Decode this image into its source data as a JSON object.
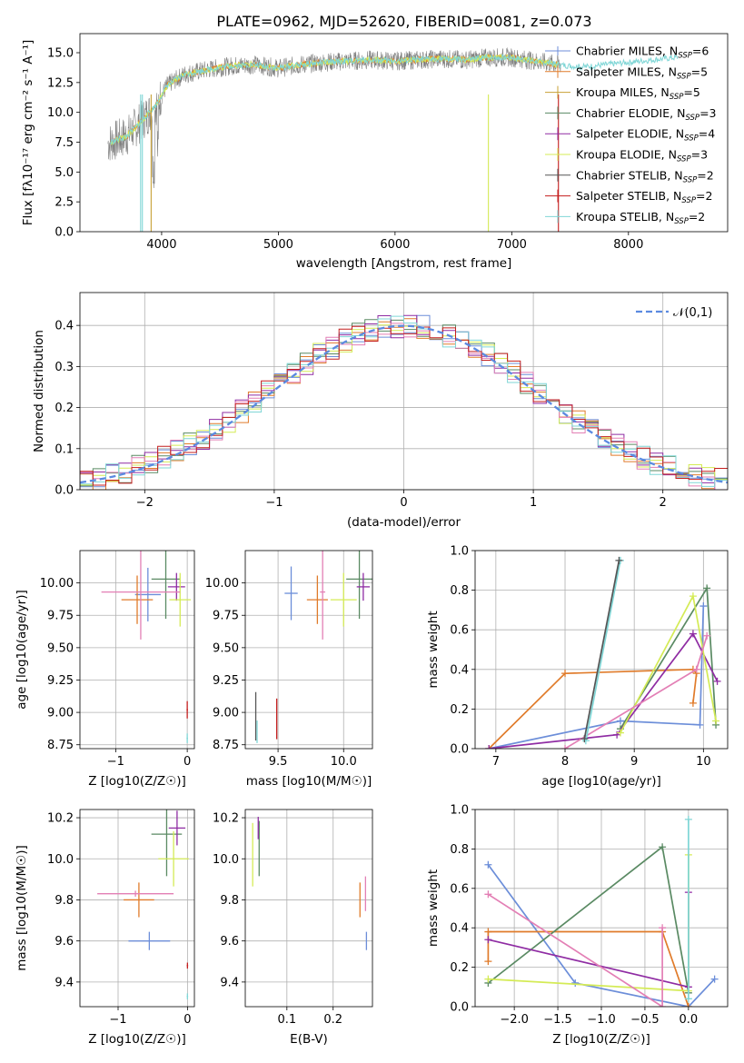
{
  "figure_title": "PLATE=0962, MJD=52620, FIBERID=0081, z=0.073",
  "colors": {
    "Chabrier MILES": "#6c8ed9",
    "Salpeter MILES": "#e07b2a",
    "Kroupa MILES": "#c8a034",
    "Chabrier ELODIE": "#5a8a63",
    "Salpeter ELODIE": "#8f2ca3",
    "Kroupa ELODIE": "#d4eb55",
    "Chabrier STELIB": "#555555",
    "Salpeter STELIB": "#c41e1e",
    "Kroupa STELIB": "#7fd6d6",
    "extra": "#e37fb5",
    "data": "#808080",
    "normal": "#5b8ae0"
  },
  "chart_data": [
    {
      "type": "line",
      "panel": "spectrum",
      "xlabel": "wavelength [Angstrom, rest frame]",
      "ylabel": "Flux [fλ10⁻¹⁷ erg cm⁻² s⁻¹ A⁻¹]",
      "xlim": [
        3300,
        8850
      ],
      "ylim": [
        0,
        16.6
      ],
      "xticks": [
        4000,
        5000,
        6000,
        7000,
        8000
      ],
      "yticks": [
        0.0,
        2.5,
        5.0,
        7.5,
        10.0,
        12.5,
        15.0
      ],
      "legend_position": "right",
      "spectrum_profile": {
        "x": [
          3540,
          3700,
          3850,
          3950,
          4050,
          4200,
          4400,
          4600,
          4800,
          5000,
          5200,
          5400,
          5600,
          5800,
          6000,
          6200,
          6400,
          6600,
          6800,
          7000,
          7200,
          7400,
          7600,
          8000,
          8400
        ],
        "y": [
          7.4,
          8.0,
          9.5,
          10.6,
          12.3,
          13.2,
          13.6,
          13.9,
          14.0,
          13.7,
          14.0,
          14.2,
          14.3,
          14.4,
          14.3,
          14.4,
          14.5,
          14.4,
          14.6,
          14.6,
          14.3,
          14.0,
          13.8,
          14.2,
          14.6
        ]
      },
      "series": [
        {
          "name": "Chabrier MILES, N_SSP=6",
          "label_main": "Chabrier MILES, N",
          "label_sub": "SSP",
          "label_tail": "=6",
          "marker": "+"
        },
        {
          "name": "Salpeter MILES, N_SSP=5",
          "label_main": "Salpeter MILES, N",
          "label_sub": "SSP",
          "label_tail": "=5",
          "marker": "|"
        },
        {
          "name": "Kroupa MILES, N_SSP=5",
          "label_main": "Kroupa MILES, N",
          "label_sub": "SSP",
          "label_tail": "=5",
          "marker": "|"
        },
        {
          "name": "Chabrier ELODIE, N_SSP=3",
          "label_main": "Chabrier ELODIE, N",
          "label_sub": "SSP",
          "label_tail": "=3",
          "marker": "|"
        },
        {
          "name": "Salpeter ELODIE, N_SSP=4",
          "label_main": "Salpeter ELODIE, N",
          "label_sub": "SSP",
          "label_tail": "=4",
          "marker": "|"
        },
        {
          "name": "Kroupa ELODIE, N_SSP=3",
          "label_main": "Kroupa ELODIE, N",
          "label_sub": "SSP",
          "label_tail": "=3",
          "marker": "|"
        },
        {
          "name": "Chabrier STELIB, N_SSP=2",
          "label_main": "Chabrier STELIB, N",
          "label_sub": "SSP",
          "label_tail": "=2",
          "marker": "|"
        },
        {
          "name": "Salpeter STELIB, N_SSP=2",
          "label_main": "Salpeter STELIB, N",
          "label_sub": "SSP",
          "label_tail": "=2",
          "marker": "|"
        },
        {
          "name": "Kroupa STELIB, N_SSP=2",
          "label_main": "Kroupa STELIB, N",
          "label_sub": "SSP",
          "label_tail": "=2",
          "marker": "|"
        }
      ]
    },
    {
      "type": "line",
      "panel": "residual histogram",
      "xlabel": "(data-model)/error",
      "ylabel": "Normed distribution",
      "xlim": [
        -2.5,
        2.5
      ],
      "ylim": [
        0,
        0.48
      ],
      "xticks": [
        -2,
        -1,
        0,
        1,
        2
      ],
      "yticks": [
        0.0,
        0.1,
        0.2,
        0.3,
        0.4
      ],
      "grid": true,
      "legend_position": "top-right",
      "reference": {
        "name": "N(0,1)",
        "mean": 0,
        "sigma": 1,
        "style": "dashed"
      },
      "bins": {
        "start": -2.5,
        "width": 0.1,
        "count": 50
      },
      "heights_note": "approximately Gaussian step histograms, one per model"
    },
    {
      "type": "scatter",
      "panel": "age vs Z",
      "xlabel": "Z [log10(Z/Z☉)]",
      "ylabel": "age  [log10(age/yr)]",
      "xlim": [
        -1.5,
        0.1
      ],
      "ylim": [
        8.72,
        10.25
      ],
      "xticks": [
        -1,
        0
      ],
      "yticks": [
        8.75,
        9.0,
        9.25,
        9.5,
        9.75,
        10.0
      ],
      "grid": true,
      "points": [
        {
          "model": "Chabrier MILES",
          "x": -0.55,
          "y": 9.91,
          "xerr": 0.18,
          "yerr": 0.2
        },
        {
          "model": "Salpeter MILES",
          "x": -0.7,
          "y": 9.87,
          "xerr": 0.22,
          "yerr": 0.18
        },
        {
          "model": "Chabrier ELODIE",
          "x": -0.3,
          "y": 10.03,
          "xerr": 0.2,
          "yerr": 0.3
        },
        {
          "model": "Salpeter ELODIE",
          "x": -0.15,
          "y": 9.97,
          "xerr": 0.12,
          "yerr": 0.1
        },
        {
          "model": "Kroupa ELODIE",
          "x": -0.1,
          "y": 9.87,
          "xerr": 0.15,
          "yerr": 0.2
        },
        {
          "model": "extra",
          "x": -0.65,
          "y": 9.93,
          "xerr": 0.55,
          "yerr": 0.36
        },
        {
          "model": "Salpeter STELIB",
          "x": 0.0,
          "y": 9.02,
          "xerr": 0.01,
          "yerr": 0.06
        },
        {
          "model": "Kroupa STELIB",
          "x": 0.0,
          "y": 8.8,
          "xerr": 0.01,
          "yerr": 0.03
        }
      ]
    },
    {
      "type": "scatter",
      "panel": "age vs mass",
      "xlabel": "mass [log10(M/M☉)]",
      "ylabel": "",
      "xlim": [
        9.25,
        10.22
      ],
      "ylim": [
        8.72,
        10.25
      ],
      "xticks": [
        9.5,
        10.0
      ],
      "yticks": [
        8.75,
        9.0,
        9.25,
        9.5,
        9.75,
        10.0
      ],
      "grid": true,
      "points": [
        {
          "model": "Chabrier MILES",
          "x": 9.6,
          "y": 9.92,
          "xerr": 0.05,
          "yerr": 0.2
        },
        {
          "model": "Salpeter MILES",
          "x": 9.8,
          "y": 9.87,
          "xerr": 0.08,
          "yerr": 0.18
        },
        {
          "model": "Chabrier ELODIE",
          "x": 10.12,
          "y": 10.03,
          "xerr": 0.1,
          "yerr": 0.3
        },
        {
          "model": "Salpeter ELODIE",
          "x": 10.15,
          "y": 9.97,
          "xerr": 0.05,
          "yerr": 0.1
        },
        {
          "model": "Kroupa ELODIE",
          "x": 10.0,
          "y": 9.87,
          "xerr": 0.1,
          "yerr": 0.2
        },
        {
          "model": "extra",
          "x": 9.84,
          "y": 9.93,
          "xerr": 0.02,
          "yerr": 0.36
        },
        {
          "model": "Salpeter STELIB",
          "x": 9.49,
          "y": 8.95,
          "xerr": 0.0,
          "yerr": 0.15
        },
        {
          "model": "Chabrier STELIB",
          "x": 9.33,
          "y": 8.97,
          "xerr": 0.0,
          "yerr": 0.18
        },
        {
          "model": "Kroupa STELIB",
          "x": 9.34,
          "y": 8.85,
          "xerr": 0.0,
          "yerr": 0.08
        }
      ]
    },
    {
      "type": "line",
      "panel": "mass weight vs age",
      "xlabel": "age  [log10(age/yr)]",
      "ylabel": "mass weight",
      "xlim": [
        6.7,
        10.35
      ],
      "ylim": [
        0,
        1.0
      ],
      "xticks": [
        7,
        8,
        9,
        10
      ],
      "yticks": [
        0.0,
        0.2,
        0.4,
        0.6,
        0.8,
        1.0
      ],
      "grid": true,
      "series": [
        {
          "model": "Chabrier MILES",
          "x": [
            6.9,
            8.8,
            9.95,
            10.0
          ],
          "y": [
            0.0,
            0.14,
            0.12,
            0.72
          ]
        },
        {
          "model": "Salpeter MILES",
          "x": [
            6.9,
            8.0,
            9.85,
            9.9,
            9.85
          ],
          "y": [
            0.0,
            0.38,
            0.4,
            0.38,
            0.23
          ]
        },
        {
          "model": "Chabrier ELODIE",
          "x": [
            8.8,
            10.05,
            10.18
          ],
          "y": [
            0.1,
            0.81,
            0.12
          ]
        },
        {
          "model": "Salpeter ELODIE",
          "x": [
            6.9,
            8.75,
            9.85,
            10.2
          ],
          "y": [
            0.0,
            0.07,
            0.58,
            0.34
          ]
        },
        {
          "model": "Kroupa ELODIE",
          "x": [
            8.8,
            9.85,
            10.18
          ],
          "y": [
            0.08,
            0.77,
            0.14
          ]
        },
        {
          "model": "extra",
          "x": [
            8.0,
            9.9,
            10.05
          ],
          "y": [
            0.0,
            0.4,
            0.57
          ]
        },
        {
          "model": "Kroupa STELIB",
          "x": [
            8.3,
            8.8
          ],
          "y": [
            0.04,
            0.95
          ]
        },
        {
          "model": "Chabrier STELIB",
          "x": [
            8.28,
            8.78
          ],
          "y": [
            0.05,
            0.95
          ]
        }
      ]
    },
    {
      "type": "scatter",
      "panel": "mass vs Z",
      "xlabel": "Z [log10(Z/Z☉)]",
      "ylabel": "mass [log10(M/M☉)]",
      "xlim": [
        -1.55,
        0.1
      ],
      "ylim": [
        9.28,
        10.24
      ],
      "xticks": [
        -1,
        0
      ],
      "yticks": [
        9.4,
        9.6,
        9.8,
        10.0,
        10.2
      ],
      "grid": true,
      "points": [
        {
          "model": "Chabrier MILES",
          "x": -0.55,
          "y": 9.6,
          "xerr": 0.3,
          "yerr": 0.04
        },
        {
          "model": "Salpeter MILES",
          "x": -0.7,
          "y": 9.8,
          "xerr": 0.22,
          "yerr": 0.08
        },
        {
          "model": "Chabrier ELODIE",
          "x": -0.3,
          "y": 10.12,
          "xerr": 0.22,
          "yerr": 0.2
        },
        {
          "model": "Salpeter ELODIE",
          "x": -0.15,
          "y": 10.15,
          "xerr": 0.12,
          "yerr": 0.08
        },
        {
          "model": "Kroupa ELODIE",
          "x": -0.2,
          "y": 10.0,
          "xerr": 0.22,
          "yerr": 0.13
        },
        {
          "model": "extra",
          "x": -0.75,
          "y": 9.83,
          "xerr": 0.55,
          "yerr": 0.01
        },
        {
          "model": "Salpeter STELIB",
          "x": 0.0,
          "y": 9.48,
          "xerr": 0.01,
          "yerr": 0.01
        },
        {
          "model": "Kroupa STELIB",
          "x": 0.0,
          "y": 9.33,
          "xerr": 0.01,
          "yerr": 0.01
        }
      ]
    },
    {
      "type": "scatter",
      "panel": "mass vs E(B-V)",
      "xlabel": "E(B-V)",
      "ylabel": "",
      "xlim": [
        0.01,
        0.285
      ],
      "ylim": [
        9.28,
        10.24
      ],
      "xticks": [
        0.1,
        0.2
      ],
      "yticks": [
        9.4,
        9.6,
        9.8,
        10.0,
        10.2
      ],
      "grid": true,
      "points": [
        {
          "model": "Kroupa ELODIE",
          "x": 0.026,
          "y": 10.02,
          "yerr": 0.15
        },
        {
          "model": "Chabrier ELODIE",
          "x": 0.04,
          "y": 10.05,
          "yerr": 0.13
        },
        {
          "model": "Salpeter ELODIE",
          "x": 0.038,
          "y": 10.15,
          "yerr": 0.05
        },
        {
          "model": "Salpeter MILES",
          "x": 0.258,
          "y": 9.8,
          "yerr": 0.08
        },
        {
          "model": "extra",
          "x": 0.27,
          "y": 9.83,
          "yerr": 0.08
        },
        {
          "model": "Chabrier MILES",
          "x": 0.272,
          "y": 9.6,
          "yerr": 0.04
        }
      ]
    },
    {
      "type": "line",
      "panel": "mass weight vs Z",
      "xlabel": "Z [log10(Z/Z☉)]",
      "ylabel": "mass weight",
      "xlim": [
        -2.45,
        0.45
      ],
      "ylim": [
        0,
        1.0
      ],
      "xticks": [
        -2.0,
        -1.5,
        -1.0,
        -0.5,
        0.0
      ],
      "yticks": [
        0.0,
        0.2,
        0.4,
        0.6,
        0.8,
        1.0
      ],
      "grid": true,
      "series": [
        {
          "model": "Chabrier MILES",
          "x": [
            -2.3,
            -1.3,
            0.0,
            0.3
          ],
          "y": [
            0.72,
            0.12,
            0.0,
            0.14
          ]
        },
        {
          "model": "Salpeter MILES",
          "x": [
            -2.3,
            -2.3,
            -0.3,
            0.0
          ],
          "y": [
            0.23,
            0.38,
            0.38,
            0.0
          ]
        },
        {
          "model": "Chabrier ELODIE",
          "x": [
            -2.3,
            -0.3,
            0.0
          ],
          "y": [
            0.12,
            0.81,
            0.07
          ]
        },
        {
          "model": "Salpeter ELODIE",
          "x": [
            -2.3,
            0.0,
            0.0
          ],
          "y": [
            0.34,
            0.1,
            0.58
          ]
        },
        {
          "model": "Kroupa ELODIE",
          "x": [
            -2.3,
            0.0,
            0.0
          ],
          "y": [
            0.14,
            0.08,
            0.77
          ]
        },
        {
          "model": "extra",
          "x": [
            -2.3,
            -0.3,
            -0.3
          ],
          "y": [
            0.57,
            0.0,
            0.4
          ]
        },
        {
          "model": "Kroupa STELIB",
          "x": [
            0.0,
            0.0
          ],
          "y": [
            0.04,
            0.95
          ]
        }
      ]
    }
  ]
}
